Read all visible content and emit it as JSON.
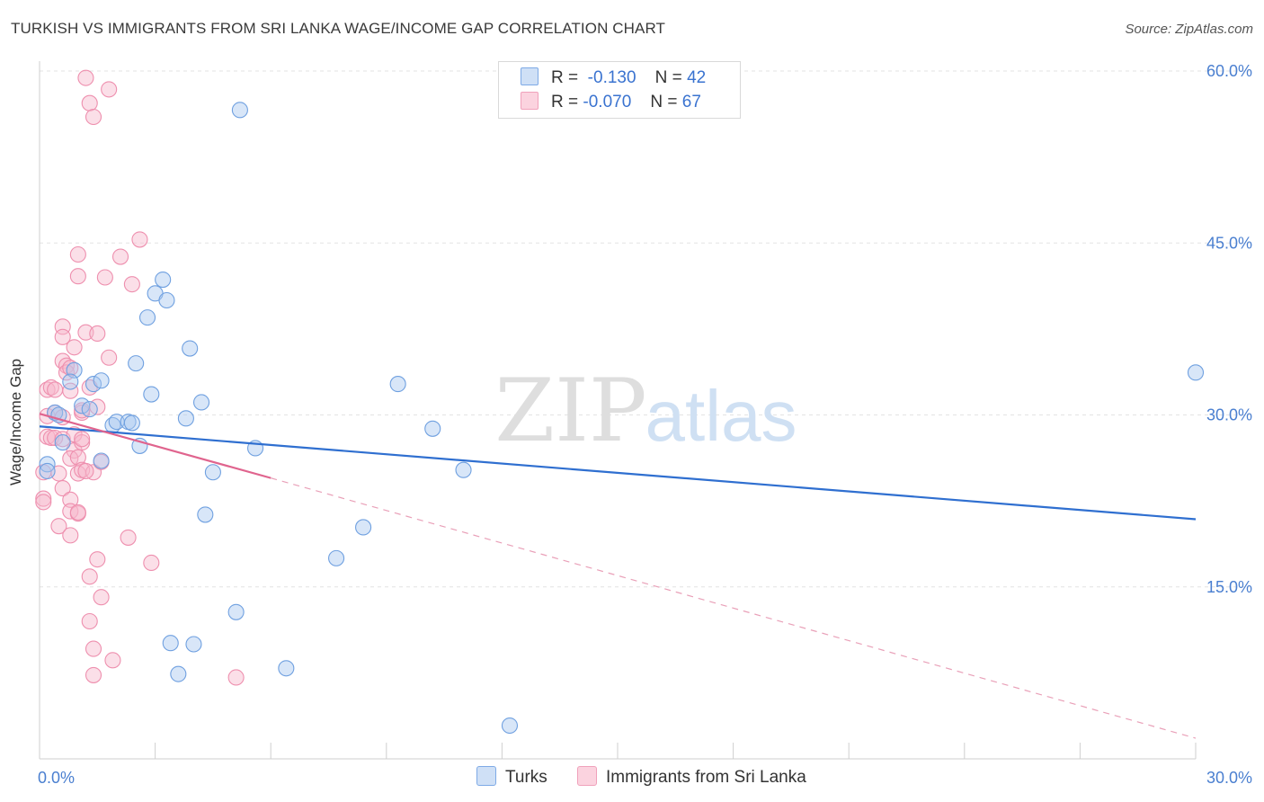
{
  "title": "TURKISH VS IMMIGRANTS FROM SRI LANKA WAGE/INCOME GAP CORRELATION CHART",
  "source": "Source: ZipAtlas.com",
  "watermark": {
    "zip": "ZIP",
    "atlas": "atlas"
  },
  "legend": {
    "rows": [
      {
        "r_label": "R =",
        "r_value": "-0.130",
        "n_label": "N =",
        "n_value": "42",
        "color": "#a9c8f0"
      },
      {
        "r_label": "R =",
        "r_value": "-0.070",
        "n_label": "N =",
        "n_value": "67",
        "color": "#f6b9cc"
      }
    ]
  },
  "bottom_legend": [
    {
      "label": "Turks",
      "color": "#a9c8f0"
    },
    {
      "label": "Immigrants from Sri Lanka",
      "color": "#f6b9cc"
    }
  ],
  "chart_data": {
    "type": "scatter",
    "title": "TURKISH VS IMMIGRANTS FROM SRI LANKA WAGE/INCOME GAP CORRELATION CHART",
    "xlabel": "",
    "ylabel": "Wage/Income Gap",
    "xlim": [
      0,
      30
    ],
    "ylim": [
      0,
      60
    ],
    "x_tick_labels": [
      "0.0%",
      "30.0%"
    ],
    "y_ticks": [
      15,
      30,
      45,
      60
    ],
    "y_tick_labels": [
      "15.0%",
      "30.0%",
      "45.0%",
      "60.0%"
    ],
    "grid": true,
    "series": [
      {
        "name": "Turks",
        "color": "#6fa0e0",
        "fill": "#a9c8f0",
        "trend": {
          "x": [
            0,
            30
          ],
          "y": [
            29.0,
            20.9
          ],
          "style": "solid",
          "color": "#2f6fd0"
        },
        "points": [
          [
            0.2,
            25.7
          ],
          [
            0.2,
            25.1
          ],
          [
            0.4,
            30.2
          ],
          [
            0.5,
            30.0
          ],
          [
            0.6,
            27.6
          ],
          [
            0.9,
            33.9
          ],
          [
            0.8,
            32.9
          ],
          [
            1.1,
            30.8
          ],
          [
            1.3,
            30.5
          ],
          [
            1.4,
            32.7
          ],
          [
            1.6,
            33.0
          ],
          [
            1.6,
            26.0
          ],
          [
            1.9,
            29.1
          ],
          [
            2.0,
            29.4
          ],
          [
            2.3,
            29.4
          ],
          [
            2.4,
            29.3
          ],
          [
            2.5,
            34.5
          ],
          [
            2.6,
            27.3
          ],
          [
            2.8,
            38.5
          ],
          [
            2.9,
            31.8
          ],
          [
            3.0,
            40.6
          ],
          [
            3.2,
            41.8
          ],
          [
            3.3,
            40.0
          ],
          [
            3.8,
            29.7
          ],
          [
            3.9,
            35.8
          ],
          [
            4.2,
            31.1
          ],
          [
            4.3,
            21.3
          ],
          [
            4.5,
            25.0
          ],
          [
            5.2,
            56.6
          ],
          [
            5.6,
            27.1
          ],
          [
            5.1,
            12.8
          ],
          [
            3.4,
            10.1
          ],
          [
            4.0,
            10.0
          ],
          [
            3.6,
            7.4
          ],
          [
            6.4,
            7.9
          ],
          [
            7.7,
            17.5
          ],
          [
            8.4,
            20.2
          ],
          [
            9.3,
            32.7
          ],
          [
            10.2,
            28.8
          ],
          [
            11.0,
            25.2
          ],
          [
            12.2,
            2.9
          ],
          [
            30.0,
            33.7
          ]
        ]
      },
      {
        "name": "Immigrants from Sri Lanka",
        "color": "#ee8fae",
        "fill": "#f6b9cc",
        "trend": {
          "x": [
            0,
            6.0
          ],
          "y": [
            30.1,
            24.5
          ],
          "style": "solid",
          "color": "#e0648e"
        },
        "trend_extension": {
          "x": [
            6.0,
            30.0
          ],
          "y": [
            24.5,
            1.8
          ],
          "style": "dashed",
          "color": "#e9a0b8"
        },
        "points": [
          [
            0.1,
            22.7
          ],
          [
            0.1,
            22.4
          ],
          [
            0.1,
            25.0
          ],
          [
            0.2,
            28.1
          ],
          [
            0.2,
            29.9
          ],
          [
            0.2,
            32.2
          ],
          [
            0.3,
            28.0
          ],
          [
            0.3,
            32.4
          ],
          [
            0.4,
            32.2
          ],
          [
            0.4,
            30.2
          ],
          [
            0.4,
            28.0
          ],
          [
            0.5,
            24.9
          ],
          [
            0.5,
            20.3
          ],
          [
            0.6,
            23.6
          ],
          [
            0.6,
            29.8
          ],
          [
            0.6,
            27.9
          ],
          [
            0.6,
            34.7
          ],
          [
            0.6,
            37.7
          ],
          [
            0.6,
            36.8
          ],
          [
            0.7,
            34.3
          ],
          [
            0.7,
            33.7
          ],
          [
            0.8,
            34.1
          ],
          [
            0.8,
            32.1
          ],
          [
            0.9,
            28.3
          ],
          [
            0.9,
            26.9
          ],
          [
            0.8,
            26.2
          ],
          [
            0.8,
            22.6
          ],
          [
            0.8,
            21.6
          ],
          [
            0.8,
            19.5
          ],
          [
            0.9,
            35.9
          ],
          [
            1.0,
            26.3
          ],
          [
            1.0,
            21.4
          ],
          [
            1.1,
            27.6
          ],
          [
            1.1,
            30.2
          ],
          [
            1.1,
            27.9
          ],
          [
            1.0,
            24.9
          ],
          [
            1.0,
            44.0
          ],
          [
            1.0,
            42.1
          ],
          [
            1.1,
            30.4
          ],
          [
            1.1,
            25.2
          ],
          [
            1.2,
            37.2
          ],
          [
            1.3,
            32.4
          ],
          [
            1.3,
            15.9
          ],
          [
            1.3,
            12.0
          ],
          [
            1.3,
            57.2
          ],
          [
            1.2,
            59.4
          ],
          [
            1.4,
            9.6
          ],
          [
            1.4,
            7.3
          ],
          [
            1.4,
            25.0
          ],
          [
            1.5,
            37.1
          ],
          [
            1.5,
            17.4
          ],
          [
            1.4,
            56.0
          ],
          [
            1.6,
            25.9
          ],
          [
            1.6,
            14.1
          ],
          [
            1.5,
            30.7
          ],
          [
            1.7,
            42.0
          ],
          [
            1.8,
            35.0
          ],
          [
            1.8,
            58.4
          ],
          [
            1.9,
            8.6
          ],
          [
            2.1,
            43.8
          ],
          [
            2.3,
            19.3
          ],
          [
            2.4,
            41.4
          ],
          [
            2.6,
            45.3
          ],
          [
            2.9,
            17.1
          ],
          [
            5.1,
            7.1
          ],
          [
            1.0,
            21.5
          ],
          [
            1.2,
            25.1
          ]
        ]
      }
    ]
  }
}
